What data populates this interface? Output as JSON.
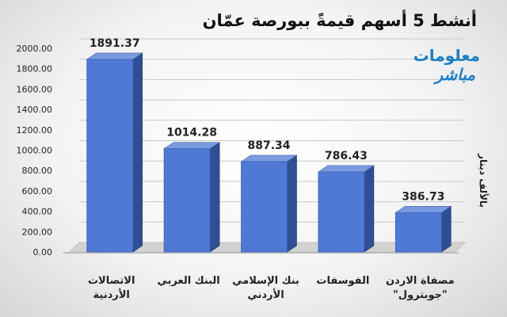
{
  "chart_data": {
    "type": "bar",
    "title": "أنشط 5 أسهم قيمةً ببورصة عمّان",
    "ylabel": "بالألف دينار",
    "ylim": [
      0,
      2000
    ],
    "ytick_step": 200,
    "ytick_labels": [
      "0.00",
      "200.00",
      "400.00",
      "600.00",
      "800.00",
      "1000.00",
      "1200.00",
      "1400.00",
      "1600.00",
      "1800.00",
      "2000.00"
    ],
    "categories": [
      [
        "الاتصالات",
        "الأردنية"
      ],
      [
        "البنك العربي"
      ],
      [
        "بنك الإسلامي",
        "الأردني"
      ],
      [
        "الفوسفات"
      ],
      [
        "مصفاة الاردن",
        "\"جوبترول\""
      ]
    ],
    "values": [
      1891.37,
      1014.28,
      887.34,
      786.43,
      386.73
    ],
    "value_labels": [
      "1891.37",
      "1014.28",
      "887.34",
      "786.43",
      "386.73"
    ],
    "bar_color": "#4f79d4",
    "grid": true
  },
  "logo": {
    "line1": "معلومات",
    "line2": "مباشر"
  }
}
